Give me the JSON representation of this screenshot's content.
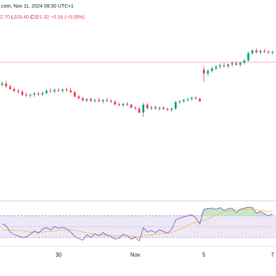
{
  "header": {
    "source_line": ".com, Nov 11, 2024 09:30 UTC+1",
    "ohlc": {
      "h_value": "2.70",
      "l_label": "L",
      "l_value": "319.40",
      "c_label": "C",
      "c_value": "321.32",
      "change": "−0.16 (−0.05%)"
    }
  },
  "colors": {
    "up": "#089981",
    "down": "#f23645",
    "rsi_line": "#7e57c2",
    "rsi_ma": "#f0c14b",
    "rsi_band": "#ede7f6",
    "reference_line": "#f4a6ae",
    "divider": "#d1d4dc",
    "fill_overbought": "#c8e6c9"
  },
  "chart_data": [
    {
      "type": "candlestick",
      "x_tick_labels": [
        "30",
        "Nov",
        "5",
        "7"
      ],
      "x_tick_index": [
        14,
        33,
        50,
        67
      ],
      "y_range": [
        295,
        330
      ],
      "reference_line": 325.2,
      "candles": [
        [
          320,
          320.8,
          319.6,
          320.3
        ],
        [
          320.3,
          320.9,
          319.3,
          319.6
        ],
        [
          319.6,
          320,
          318.8,
          319
        ],
        [
          319,
          319.4,
          318.2,
          318.6
        ],
        [
          318.6,
          319.1,
          317.9,
          318.4
        ],
        [
          318.4,
          318.8,
          317.4,
          317.7
        ],
        [
          317.7,
          318.2,
          317.1,
          317.5
        ],
        [
          317.5,
          318,
          316.9,
          317.7
        ],
        [
          317.7,
          318.3,
          317.2,
          318
        ],
        [
          318,
          318.5,
          317.4,
          317.8
        ],
        [
          317.8,
          318.4,
          317.3,
          318.1
        ],
        [
          318.1,
          318.9,
          317.8,
          318.6
        ],
        [
          318.6,
          319.2,
          318.1,
          318.5
        ],
        [
          318.5,
          319.1,
          318,
          318.8
        ],
        [
          318.8,
          319.3,
          318.3,
          318.6
        ],
        [
          318.6,
          319.1,
          318.1,
          318.9
        ],
        [
          318.9,
          319.4,
          318.4,
          318.7
        ],
        [
          318.7,
          319.2,
          318.1,
          318.3
        ],
        [
          318.3,
          318.6,
          317,
          317.3
        ],
        [
          317.3,
          317.7,
          316.6,
          316.9
        ],
        [
          316.9,
          317.3,
          316.1,
          316.4
        ],
        [
          316.4,
          316.9,
          315.9,
          316.7
        ],
        [
          316.7,
          317.1,
          316,
          316.3
        ],
        [
          316.3,
          316.8,
          315.8,
          316.5
        ],
        [
          316.5,
          317,
          316,
          316.2
        ],
        [
          316.2,
          316.7,
          315.7,
          316.5
        ],
        [
          316.5,
          317,
          316,
          316.3
        ],
        [
          316.3,
          316.7,
          315.8,
          316.1
        ],
        [
          316.1,
          316.5,
          315.2,
          315.5
        ],
        [
          315.5,
          315.9,
          315,
          315.3
        ],
        [
          315.3,
          315.8,
          314.9,
          315.6
        ],
        [
          315.6,
          316,
          315.1,
          315.4
        ],
        [
          315.4,
          315.7,
          314.5,
          314.7
        ],
        [
          314.7,
          315.1,
          314.2,
          314.5
        ],
        [
          314.5,
          314.9,
          313.4,
          313.6
        ],
        [
          313.6,
          315.9,
          312.6,
          315.4
        ],
        [
          315.4,
          315.8,
          314.3,
          314.6
        ],
        [
          314.6,
          315.1,
          314.2,
          314.8
        ],
        [
          314.8,
          315.2,
          314.3,
          314.5
        ],
        [
          314.5,
          315,
          314,
          314.7
        ],
        [
          314.7,
          315.1,
          314.2,
          314.4
        ],
        [
          314.4,
          314.8,
          313.9,
          314.2
        ],
        [
          314.2,
          314.8,
          313.8,
          314.5
        ],
        [
          314.5,
          316.3,
          314.2,
          316
        ],
        [
          316,
          316.5,
          315.6,
          316.2
        ],
        [
          316.2,
          316.8,
          315.8,
          316.5
        ],
        [
          316.5,
          317,
          316.1,
          316.7
        ],
        [
          316.7,
          317.3,
          316.4,
          317
        ],
        [
          317,
          317.4,
          316.6,
          316.8
        ],
        [
          316.8,
          317,
          316,
          316.2
        ],
        [
          323.5,
          324.3,
          320.7,
          322.6
        ],
        [
          322.6,
          323.6,
          322,
          323.2
        ],
        [
          323.2,
          324.2,
          322.8,
          323.8
        ],
        [
          323.8,
          324.6,
          323.3,
          324.2
        ],
        [
          324.2,
          324.9,
          323.7,
          324.5
        ],
        [
          324.5,
          325.1,
          323.9,
          324.3
        ],
        [
          324.3,
          324.9,
          323.8,
          324.7
        ],
        [
          324.7,
          325.4,
          324.2,
          325
        ],
        [
          325,
          325.5,
          324.4,
          324.6
        ],
        [
          324.6,
          325.3,
          324.2,
          325.1
        ],
        [
          325.1,
          325.9,
          324.7,
          325.6
        ],
        [
          325.6,
          327.7,
          325.3,
          327.3
        ],
        [
          327.3,
          328.2,
          326.9,
          327.9
        ],
        [
          327.9,
          328.4,
          327.2,
          327.5
        ],
        [
          327.5,
          328.1,
          327,
          327.8
        ],
        [
          327.8,
          328.3,
          327.3,
          327.6
        ],
        [
          327.6,
          328,
          327.1,
          327.4
        ],
        [
          327.4,
          327.9,
          326.9,
          327.6
        ]
      ]
    },
    {
      "type": "line",
      "indicator": "RSI",
      "y_range": [
        15,
        90
      ],
      "band": [
        30,
        70
      ],
      "series": [
        {
          "values": [
            55,
            52,
            40,
            35,
            33,
            30,
            31,
            36,
            42,
            38,
            45,
            48,
            44,
            50,
            47,
            49,
            46,
            40,
            32,
            28,
            25,
            35,
            30,
            37,
            33,
            39,
            34,
            32,
            27,
            29,
            36,
            33,
            27,
            30,
            24,
            48,
            40,
            43,
            39,
            44,
            41,
            38,
            45,
            62,
            66,
            68,
            70,
            72,
            66,
            55,
            82,
            83,
            84,
            82,
            85,
            80,
            83,
            84,
            76,
            82,
            84,
            86,
            85,
            75,
            78,
            74,
            70,
            74
          ]
        },
        {
          "values": [
            44,
            44,
            44,
            43,
            43,
            42,
            41,
            40,
            40,
            40,
            40,
            41,
            41,
            42,
            43,
            44,
            44,
            44,
            43,
            42,
            40,
            38,
            37,
            36,
            35,
            35,
            34,
            34,
            33,
            33,
            33,
            33,
            32,
            32,
            31,
            33,
            34,
            35,
            36,
            37,
            38,
            38,
            39,
            42,
            45,
            48,
            52,
            56,
            58,
            59,
            62,
            65,
            68,
            71,
            74,
            77,
            79,
            80,
            81,
            81,
            82,
            82,
            82,
            81,
            80,
            79,
            78,
            77
          ]
        }
      ]
    }
  ]
}
